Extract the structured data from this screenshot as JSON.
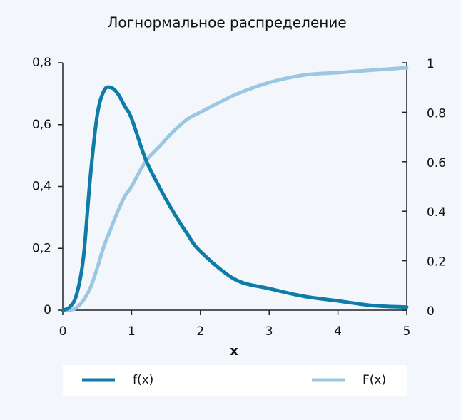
{
  "chart_data": {
    "type": "line",
    "title": "Логнормальное распределение",
    "xlabel": "x",
    "x": [
      0,
      0.1,
      0.2,
      0.3,
      0.4,
      0.5,
      0.6,
      0.7,
      0.8,
      0.9,
      1,
      1.2,
      1.4,
      1.6,
      1.8,
      2,
      2.5,
      3,
      3.5,
      4,
      4.5,
      5
    ],
    "series": [
      {
        "name": "f(x)",
        "color": "#0f7ca8",
        "values": [
          0,
          0.01,
          0.05,
          0.17,
          0.43,
          0.63,
          0.71,
          0.72,
          0.7,
          0.66,
          0.62,
          0.49,
          0.4,
          0.32,
          0.25,
          0.19,
          0.1,
          0.07,
          0.045,
          0.03,
          0.015,
          0.01
        ]
      },
      {
        "name": "F(x)",
        "color": "#9cc7e3",
        "axis": "y2",
        "values": [
          0,
          0,
          0.01,
          0.04,
          0.09,
          0.17,
          0.26,
          0.33,
          0.4,
          0.46,
          0.5,
          0.6,
          0.66,
          0.72,
          0.77,
          0.8,
          0.87,
          0.92,
          0.95,
          0.96,
          0.97,
          0.98
        ]
      }
    ],
    "xlim": [
      0,
      5
    ],
    "xticks": [
      0,
      1,
      2,
      3,
      4,
      5
    ],
    "ylim": [
      0,
      0.8
    ],
    "yticks": [
      0,
      {
        "value": 0.2,
        "label": "0,2"
      },
      {
        "value": 0.4,
        "label": "0,4"
      },
      {
        "value": 0.6,
        "label": "0,6"
      },
      {
        "value": 0.8,
        "label": "0,8"
      }
    ],
    "y2lim": [
      0,
      1
    ],
    "y2ticks": [
      0,
      0.2,
      0.4,
      0.6,
      0.8,
      1
    ],
    "legend": "bottom"
  }
}
